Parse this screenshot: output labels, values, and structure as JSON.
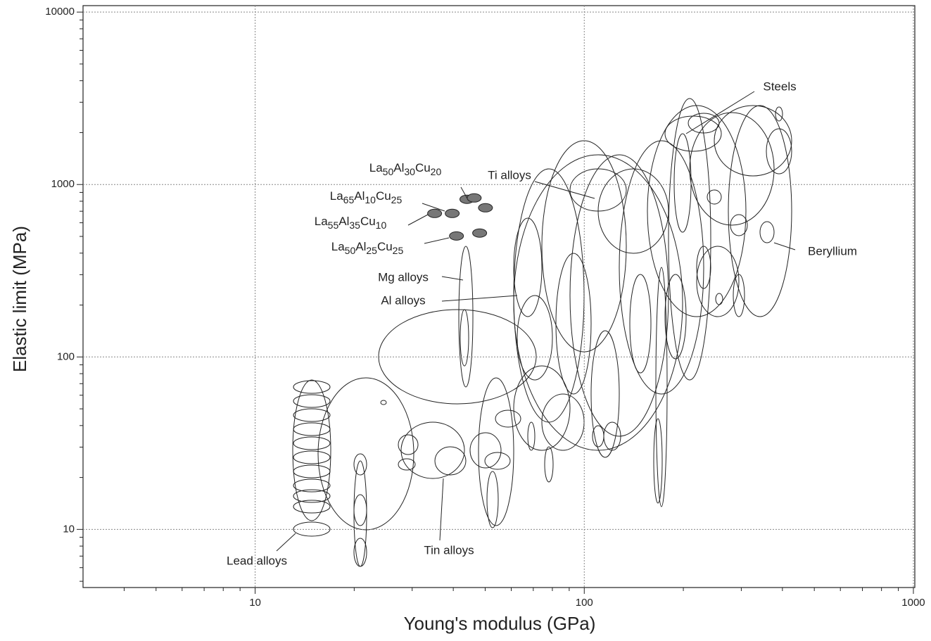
{
  "chart_data": {
    "type": "scatter",
    "xlabel": "Young's modulus (GPa)",
    "ylabel": "Elastic limit (MPa)",
    "xscale": "log",
    "yscale": "log",
    "xlim": [
      3,
      1010
    ],
    "ylim": [
      4.6,
      10900
    ],
    "xticks": [
      10,
      100,
      1000
    ],
    "yticks": [
      10,
      100,
      1000,
      10000
    ],
    "grid": true,
    "minor_ticks": true,
    "series": [
      {
        "color": "#777777",
        "x": [
          44.0,
          46.3,
          50.1,
          35.1,
          39.7,
          40.9,
          48.1
        ],
        "values": [
          821,
          836,
          733,
          680,
          680,
          503,
          523
        ]
      }
    ],
    "annotations": [
      "La50Al30Cu20",
      "La65Al10Cu25",
      "La55Al35Cu10",
      "La50Al25Cu25",
      "Ti alloys",
      "Steels",
      "Beryllium",
      "Mg alloys",
      "Al alloys",
      "Lead alloys",
      "Tin alloys"
    ]
  }
}
